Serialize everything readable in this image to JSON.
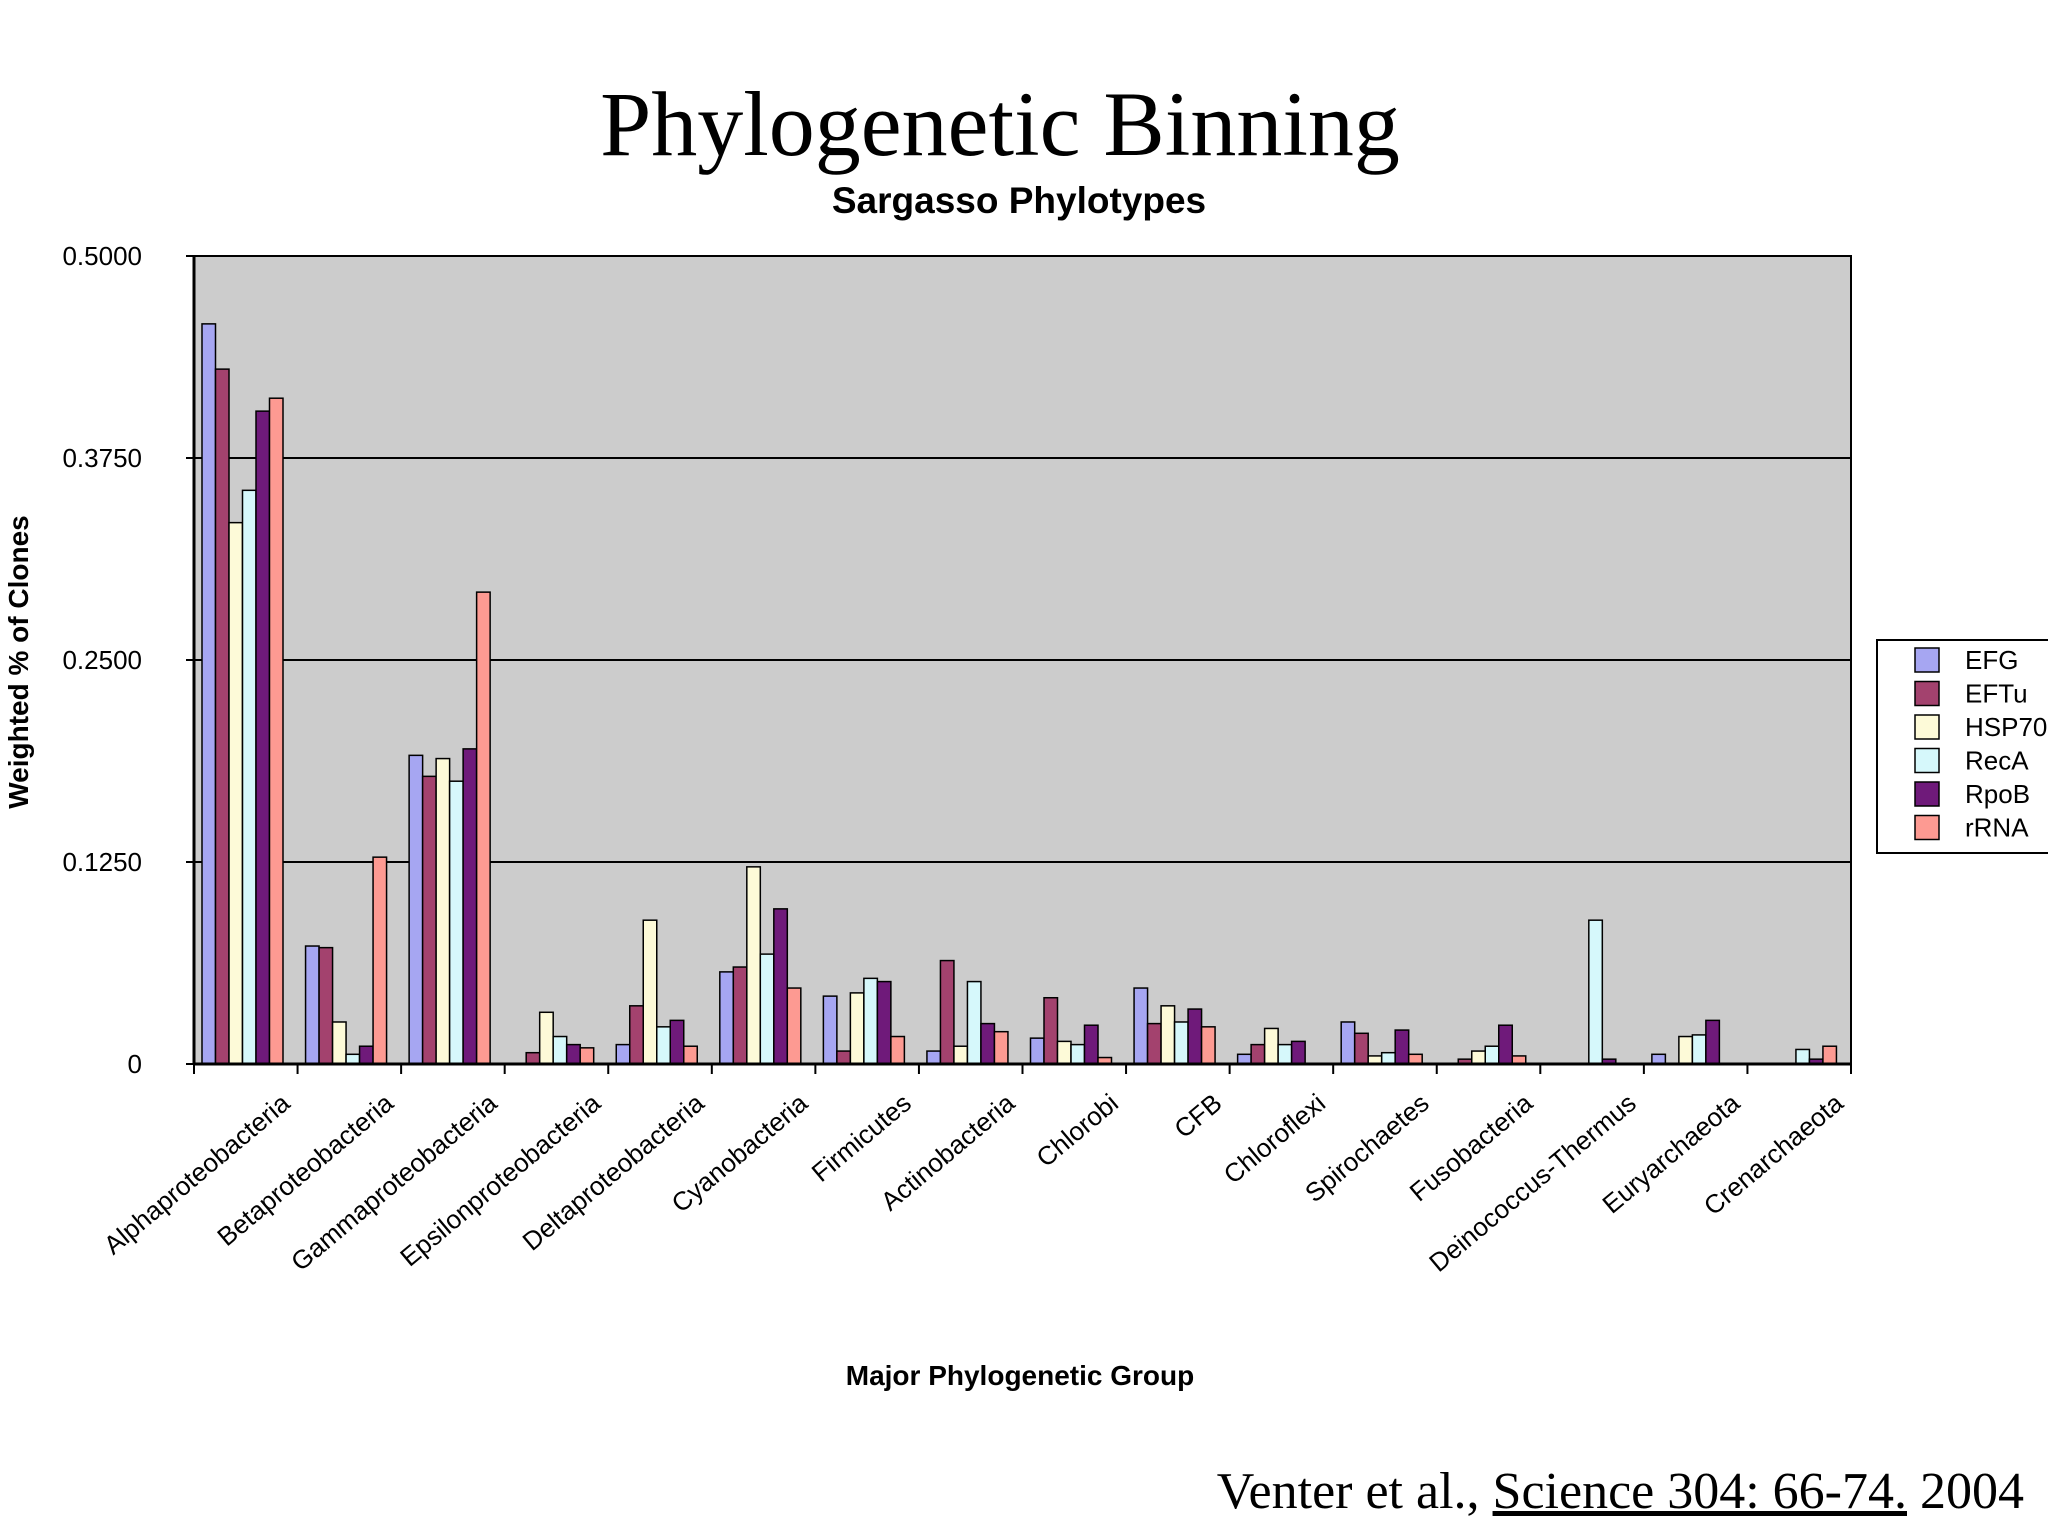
{
  "slide": {
    "title": "Phylogenetic Binning",
    "citation_authors": "Venter et al.,",
    "citation_journal": "Science 304: 66-74.",
    "citation_year": "2004"
  },
  "chart_data": {
    "type": "bar",
    "title": "Sargasso Phylotypes",
    "xlabel": "Major Phylogenetic Group",
    "ylabel": "Weighted % of Clones",
    "ylim": [
      0,
      0.5
    ],
    "yticks": [
      "0",
      "0.1250",
      "0.2500",
      "0.3750",
      "0.5000"
    ],
    "ytick_values": [
      0,
      0.125,
      0.25,
      0.375,
      0.5
    ],
    "grid": true,
    "legend_position": "right",
    "categories": [
      "Alphaproteobacteria",
      "Betaproteobacteria",
      "Gammaproteobacteria",
      "Epsilonproteobacteria",
      "Deltaproteobacteria",
      "Cyanobacteria",
      "Firmicutes",
      "Actinobacteria",
      "Chlorobi",
      "CFB",
      "Chloroflexi",
      "Spirochaetes",
      "Fusobacteria",
      "Deinococcus-Thermus",
      "Euryarchaeota",
      "Crenarchaeota"
    ],
    "series": [
      {
        "name": "EFG",
        "color": "#a6a6f2",
        "values": [
          0.458,
          0.073,
          0.191,
          0,
          0.012,
          0.057,
          0.042,
          0.008,
          0.016,
          0.047,
          0.006,
          0.026,
          0,
          0,
          0.006,
          0
        ]
      },
      {
        "name": "EFTu",
        "color": "#a3426e",
        "values": [
          0.43,
          0.072,
          0.178,
          0.007,
          0.036,
          0.06,
          0.008,
          0.064,
          0.041,
          0.025,
          0.012,
          0.019,
          0.003,
          0,
          0,
          0
        ]
      },
      {
        "name": "HSP70",
        "color": "#fdfad8",
        "values": [
          0.335,
          0.026,
          0.189,
          0.032,
          0.089,
          0.122,
          0.044,
          0.011,
          0.014,
          0.036,
          0.022,
          0.005,
          0.008,
          0,
          0.017,
          0
        ]
      },
      {
        "name": "RecA",
        "color": "#d6f8fb",
        "values": [
          0.355,
          0.006,
          0.175,
          0.017,
          0.023,
          0.068,
          0.053,
          0.051,
          0.012,
          0.026,
          0.012,
          0.007,
          0.011,
          0.089,
          0.018,
          0.009
        ]
      },
      {
        "name": "RpoB",
        "color": "#6f1a7a",
        "values": [
          0.404,
          0.011,
          0.195,
          0.012,
          0.027,
          0.096,
          0.051,
          0.025,
          0.024,
          0.034,
          0.014,
          0.021,
          0.024,
          0.003,
          0.027,
          0.003
        ]
      },
      {
        "name": "rRNA",
        "color": "#fd9a92",
        "values": [
          0.412,
          0.128,
          0.292,
          0.01,
          0.011,
          0.047,
          0.017,
          0.02,
          0.004,
          0.023,
          0,
          0.006,
          0.005,
          0,
          0,
          0.011
        ]
      }
    ]
  }
}
